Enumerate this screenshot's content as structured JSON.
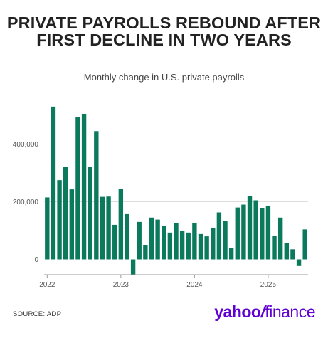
{
  "title": "PRIVATE PAYROLLS REBOUND AFTER FIRST DECLINE IN TWO YEARS",
  "subtitle": "Monthly change in U.S. private payrolls",
  "source": "SOURCE: ADP",
  "logo": {
    "part1": "yahoo",
    "slash": "/",
    "part2": "finance"
  },
  "colors": {
    "bar": "#0b7a5c",
    "grid": "#dddddd",
    "text": "#222222",
    "tick": "#555555",
    "logo": "#5f01d1"
  },
  "chart_data": {
    "type": "bar",
    "title": "PRIVATE PAYROLLS REBOUND AFTER FIRST DECLINE IN TWO YEARS",
    "subtitle": "Monthly change in U.S. private payrolls",
    "xlabel": "",
    "ylabel": "",
    "ylim": [
      -60000,
      560000
    ],
    "yticks": [
      0,
      200000,
      400000
    ],
    "ytick_labels": [
      "0",
      "200,000",
      "400,000"
    ],
    "xtick_labels": [
      "2022",
      "2023",
      "2024",
      "2025"
    ],
    "grid": true,
    "categories": [
      "2022-01",
      "2022-02",
      "2022-03",
      "2022-04",
      "2022-05",
      "2022-06",
      "2022-07",
      "2022-08",
      "2022-09",
      "2022-10",
      "2022-11",
      "2022-12",
      "2023-01",
      "2023-02",
      "2023-03",
      "2023-04",
      "2023-05",
      "2023-06",
      "2023-07",
      "2023-08",
      "2023-09",
      "2023-10",
      "2023-11",
      "2023-12",
      "2024-01",
      "2024-02",
      "2024-03",
      "2024-04",
      "2024-05",
      "2024-06",
      "2024-07",
      "2024-08",
      "2024-09",
      "2024-10",
      "2024-11",
      "2024-12",
      "2025-01",
      "2025-02",
      "2025-03",
      "2025-04",
      "2025-05",
      "2025-06",
      "2025-07"
    ],
    "values": [
      215000,
      530000,
      275000,
      320000,
      243000,
      495000,
      505000,
      320000,
      445000,
      217000,
      218000,
      120000,
      245000,
      157000,
      -53000,
      130000,
      50000,
      145000,
      138000,
      116000,
      93000,
      127000,
      98000,
      93000,
      126000,
      88000,
      80000,
      110000,
      163000,
      134000,
      40000,
      180000,
      190000,
      220000,
      205000,
      177000,
      185000,
      82000,
      145000,
      58000,
      35000,
      -23000,
      104000
    ]
  }
}
